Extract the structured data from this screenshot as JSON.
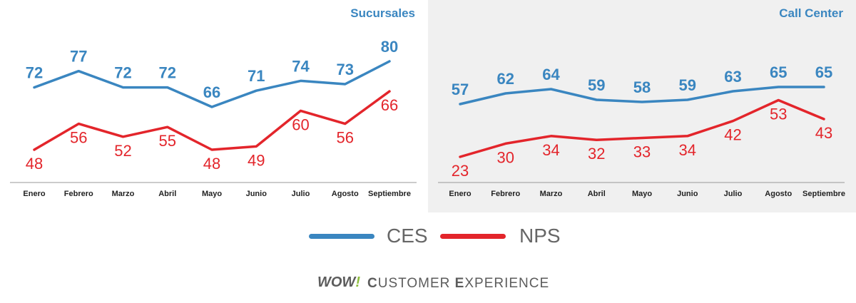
{
  "colors": {
    "ces": "#3a86c0",
    "nps": "#e3252b",
    "right_panel_bg": "#f0f0f0",
    "brand_accent": "#8dbd3c"
  },
  "legend": {
    "ces_label": "CES",
    "nps_label": "NPS"
  },
  "brand": {
    "logo_prefix": "WOW",
    "logo_suffix": "!",
    "tagline_c": "C",
    "tagline_rest_1": "USTOMER ",
    "tagline_e": "E",
    "tagline_rest_2": "XPERIENCE"
  },
  "chart_data": [
    {
      "type": "line",
      "title": "Sucursales",
      "categories": [
        "Enero",
        "Febrero",
        "Marzo",
        "Abril",
        "Mayo",
        "Junio",
        "Julio",
        "Agosto",
        "Septiembre"
      ],
      "series": [
        {
          "name": "CES",
          "values": [
            72,
            77,
            72,
            72,
            66,
            71,
            74,
            73,
            80
          ]
        },
        {
          "name": "NPS",
          "values": [
            48,
            56,
            52,
            55,
            48,
            49,
            60,
            56,
            66
          ]
        }
      ],
      "grid": false,
      "legend": "bottom"
    },
    {
      "type": "line",
      "title": "Call Center",
      "categories": [
        "Enero",
        "Febrero",
        "Marzo",
        "Abril",
        "Mayo",
        "Junio",
        "Julio",
        "Agosto",
        "Septiembre"
      ],
      "series": [
        {
          "name": "CES",
          "values": [
            57,
            62,
            64,
            59,
            58,
            59,
            63,
            65,
            65
          ]
        },
        {
          "name": "NPS",
          "values": [
            23,
            30,
            34,
            32,
            33,
            34,
            42,
            53,
            43
          ]
        }
      ],
      "grid": false,
      "legend": "bottom"
    }
  ]
}
